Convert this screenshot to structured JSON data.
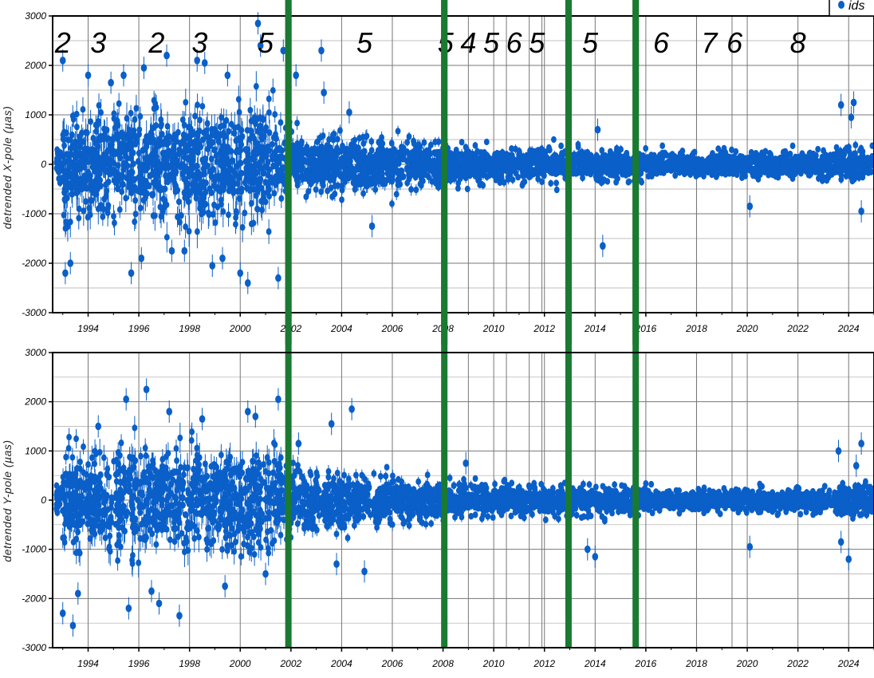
{
  "chart_data": [
    {
      "type": "scatter",
      "panel": "top",
      "xlabel": "",
      "ylabel": "detrended X-pole (µas)",
      "xlim": [
        1992.6,
        2025.0
      ],
      "ylim": [
        -3000,
        3000
      ],
      "yticks": [
        -3000,
        -2000,
        -1000,
        0,
        1000,
        2000,
        3000
      ],
      "xticks": [
        1994,
        1996,
        1998,
        2000,
        2002,
        2004,
        2006,
        2008,
        2010,
        2012,
        2014,
        2016,
        2018,
        2020,
        2022,
        2024
      ],
      "grid": true,
      "legend": "top-right",
      "series": [
        {
          "name": "ids",
          "color": "#0a5fc8",
          "envelope": [
            {
              "x": 1993.0,
              "amp": 1300
            },
            {
              "x": 1995.0,
              "amp": 1350
            },
            {
              "x": 1997.0,
              "amp": 1400
            },
            {
              "x": 1999.0,
              "amp": 1450
            },
            {
              "x": 2001.0,
              "amp": 1400
            },
            {
              "x": 2002.2,
              "amp": 800
            },
            {
              "x": 2004.0,
              "amp": 650
            },
            {
              "x": 2006.0,
              "amp": 600
            },
            {
              "x": 2008.0,
              "amp": 550
            },
            {
              "x": 2009.0,
              "amp": 450
            },
            {
              "x": 2011.0,
              "amp": 420
            },
            {
              "x": 2013.0,
              "amp": 400
            },
            {
              "x": 2015.5,
              "amp": 380
            },
            {
              "x": 2016.0,
              "amp": 300
            },
            {
              "x": 2018.0,
              "amp": 280
            },
            {
              "x": 2020.0,
              "amp": 290
            },
            {
              "x": 2022.0,
              "amp": 300
            },
            {
              "x": 2024.0,
              "amp": 400
            },
            {
              "x": 2025.0,
              "amp": 420
            }
          ],
          "outliers": [
            {
              "x": 1993.0,
              "y": 2100
            },
            {
              "x": 1993.1,
              "y": -2200
            },
            {
              "x": 1993.3,
              "y": -2000
            },
            {
              "x": 1994.0,
              "y": 1800
            },
            {
              "x": 1994.9,
              "y": 1650
            },
            {
              "x": 1995.4,
              "y": 1800
            },
            {
              "x": 1995.7,
              "y": -2200
            },
            {
              "x": 1996.1,
              "y": -1900
            },
            {
              "x": 1996.2,
              "y": 1950
            },
            {
              "x": 1997.1,
              "y": 2200
            },
            {
              "x": 1997.3,
              "y": -1750
            },
            {
              "x": 1997.8,
              "y": -1750
            },
            {
              "x": 1998.3,
              "y": 2100
            },
            {
              "x": 1998.6,
              "y": 2050
            },
            {
              "x": 1998.9,
              "y": -2050
            },
            {
              "x": 1999.3,
              "y": -1900
            },
            {
              "x": 1999.5,
              "y": 1800
            },
            {
              "x": 2000.0,
              "y": -2200
            },
            {
              "x": 2000.3,
              "y": -2400
            },
            {
              "x": 2000.7,
              "y": 2850
            },
            {
              "x": 2000.8,
              "y": 2400
            },
            {
              "x": 2001.5,
              "y": -2300
            },
            {
              "x": 2001.7,
              "y": 2300
            },
            {
              "x": 2002.2,
              "y": 1800
            },
            {
              "x": 2003.2,
              "y": 2300
            },
            {
              "x": 2003.3,
              "y": 1450
            },
            {
              "x": 2004.3,
              "y": 1050
            },
            {
              "x": 2005.2,
              "y": -1250
            },
            {
              "x": 2014.1,
              "y": 700
            },
            {
              "x": 2014.3,
              "y": -1650
            },
            {
              "x": 2023.7,
              "y": 1200
            },
            {
              "x": 2024.2,
              "y": 1250
            },
            {
              "x": 2024.1,
              "y": 950
            },
            {
              "x": 2024.5,
              "y": -950
            },
            {
              "x": 2020.1,
              "y": -850
            }
          ]
        }
      ],
      "legend_label": "ids",
      "breaks": [
        2001.9,
        2008.05,
        2012.95,
        2015.6
      ],
      "thin_gridlines": [
        2009.0,
        2010.5,
        2011.4,
        2011.9,
        2015.7,
        2018.0,
        2019.4
      ],
      "segment_labels": [
        {
          "x": 1993.0,
          "text": "2"
        },
        {
          "x": 1994.4,
          "text": "3"
        },
        {
          "x": 1996.7,
          "text": "2"
        },
        {
          "x": 1998.4,
          "text": "3"
        },
        {
          "x": 2001.0,
          "text": "5"
        },
        {
          "x": 2004.9,
          "text": "5"
        },
        {
          "x": 2008.1,
          "text": "5"
        },
        {
          "x": 2009.0,
          "text": "4"
        },
        {
          "x": 2009.9,
          "text": "5"
        },
        {
          "x": 2010.8,
          "text": "6"
        },
        {
          "x": 2011.7,
          "text": "5"
        },
        {
          "x": 2013.8,
          "text": "5"
        },
        {
          "x": 2016.6,
          "text": "6"
        },
        {
          "x": 2018.5,
          "text": "7"
        },
        {
          "x": 2019.5,
          "text": "6"
        },
        {
          "x": 2022.0,
          "text": "8"
        }
      ]
    },
    {
      "type": "scatter",
      "panel": "bottom",
      "xlabel": "",
      "ylabel": "detrended Y-pole (µas)",
      "xlim": [
        1992.6,
        2025.0
      ],
      "ylim": [
        -3000,
        3000
      ],
      "yticks": [
        -3000,
        -2000,
        -1000,
        0,
        1000,
        2000,
        3000
      ],
      "xticks": [
        1994,
        1996,
        1998,
        2000,
        2002,
        2004,
        2006,
        2008,
        2010,
        2012,
        2014,
        2016,
        2018,
        2020,
        2022,
        2024
      ],
      "grid": true,
      "series": [
        {
          "name": "ids",
          "color": "#0a5fc8",
          "envelope": [
            {
              "x": 1993.0,
              "amp": 1200
            },
            {
              "x": 1995.0,
              "amp": 1250
            },
            {
              "x": 1997.0,
              "amp": 1300
            },
            {
              "x": 1999.0,
              "amp": 1300
            },
            {
              "x": 2001.0,
              "amp": 1350
            },
            {
              "x": 2002.2,
              "amp": 800
            },
            {
              "x": 2004.0,
              "amp": 650
            },
            {
              "x": 2006.0,
              "amp": 550
            },
            {
              "x": 2008.0,
              "amp": 500
            },
            {
              "x": 2009.0,
              "amp": 400
            },
            {
              "x": 2011.0,
              "amp": 380
            },
            {
              "x": 2013.0,
              "amp": 380
            },
            {
              "x": 2015.5,
              "amp": 350
            },
            {
              "x": 2016.0,
              "amp": 280
            },
            {
              "x": 2018.0,
              "amp": 260
            },
            {
              "x": 2020.0,
              "amp": 280
            },
            {
              "x": 2022.0,
              "amp": 300
            },
            {
              "x": 2024.0,
              "amp": 380
            },
            {
              "x": 2025.0,
              "amp": 400
            }
          ],
          "outliers": [
            {
              "x": 1993.0,
              "y": -2300
            },
            {
              "x": 1993.4,
              "y": -2550
            },
            {
              "x": 1993.6,
              "y": -1900
            },
            {
              "x": 1994.4,
              "y": 1500
            },
            {
              "x": 1995.5,
              "y": 2050
            },
            {
              "x": 1995.6,
              "y": -2200
            },
            {
              "x": 1996.3,
              "y": 2250
            },
            {
              "x": 1996.5,
              "y": -1850
            },
            {
              "x": 1996.8,
              "y": -2100
            },
            {
              "x": 1997.2,
              "y": 1800
            },
            {
              "x": 1997.6,
              "y": -2350
            },
            {
              "x": 1998.5,
              "y": 1650
            },
            {
              "x": 1999.4,
              "y": -1750
            },
            {
              "x": 2000.3,
              "y": 1800
            },
            {
              "x": 2000.6,
              "y": 1700
            },
            {
              "x": 2001.0,
              "y": -1500
            },
            {
              "x": 2001.5,
              "y": 2050
            },
            {
              "x": 2002.3,
              "y": 1150
            },
            {
              "x": 2003.6,
              "y": 1550
            },
            {
              "x": 2003.8,
              "y": -1300
            },
            {
              "x": 2004.4,
              "y": 1850
            },
            {
              "x": 2004.9,
              "y": -1450
            },
            {
              "x": 2008.9,
              "y": 750
            },
            {
              "x": 2013.7,
              "y": -1000
            },
            {
              "x": 2014.0,
              "y": -1150
            },
            {
              "x": 2020.1,
              "y": -950
            },
            {
              "x": 2023.6,
              "y": 1000
            },
            {
              "x": 2023.7,
              "y": -850
            },
            {
              "x": 2024.0,
              "y": -1200
            },
            {
              "x": 2024.5,
              "y": 1150
            },
            {
              "x": 2024.3,
              "y": 700
            }
          ]
        }
      ],
      "breaks": [
        2001.9,
        2008.05,
        2012.95,
        2015.6
      ],
      "thin_gridlines": [
        2009.0,
        2010.5,
        2011.4,
        2011.9,
        2015.7,
        2018.0,
        2019.4
      ]
    }
  ],
  "colors": {
    "points": "#0a5fc8",
    "break_lines": "#1a7a32",
    "grid": "#8a8a8a",
    "axis": "#000000"
  }
}
